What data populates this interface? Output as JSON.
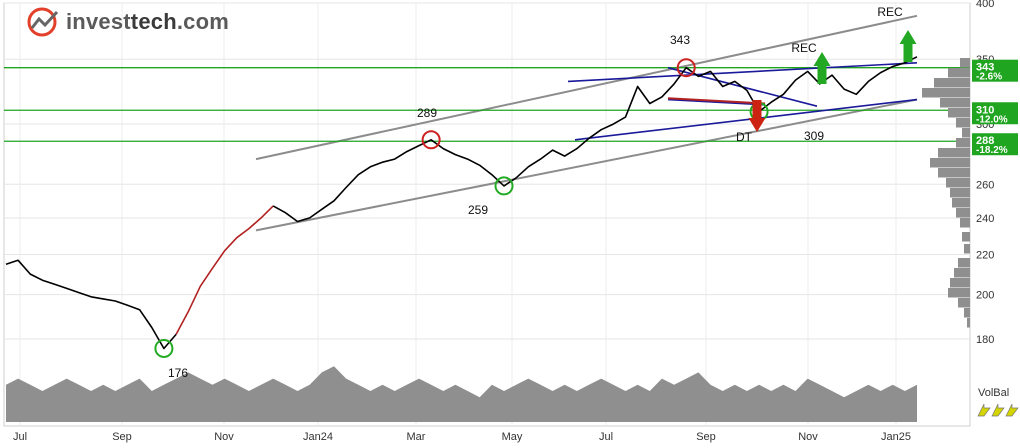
{
  "brand": {
    "name_plain": "invest",
    "name_accent": "tech",
    "name_suffix": ".com",
    "logo_color": "#e2402a"
  },
  "chart_data": {
    "type": "line",
    "price_axis": {
      "ticks": [
        180,
        200,
        220,
        240,
        260,
        300,
        350,
        400
      ],
      "tick_labels": [
        "180",
        "200",
        "220",
        "240",
        "260",
        "300",
        "350",
        "400"
      ]
    },
    "x_axis": {
      "labels": [
        "Jul",
        "Sep",
        "Nov",
        "Jan24",
        "Mar",
        "May",
        "Jul",
        "Sep",
        "Nov",
        "Jan25"
      ]
    },
    "price_series": [
      [
        0,
        215
      ],
      [
        1,
        217
      ],
      [
        2,
        210
      ],
      [
        3,
        207
      ],
      [
        4,
        205
      ],
      [
        5,
        203
      ],
      [
        6,
        201
      ],
      [
        7,
        199
      ],
      [
        8,
        198
      ],
      [
        9,
        197
      ],
      [
        10,
        195
      ],
      [
        11,
        193
      ],
      [
        12,
        185
      ],
      [
        13,
        176
      ],
      [
        14,
        182
      ],
      [
        15,
        192
      ],
      [
        16,
        204
      ],
      [
        17,
        213
      ],
      [
        18,
        222
      ],
      [
        19,
        229
      ],
      [
        20,
        234
      ],
      [
        21,
        240
      ],
      [
        22,
        247
      ],
      [
        23,
        243
      ],
      [
        24,
        238
      ],
      [
        25,
        240
      ],
      [
        26,
        245
      ],
      [
        27,
        250
      ],
      [
        28,
        258
      ],
      [
        29,
        266
      ],
      [
        30,
        271
      ],
      [
        31,
        274
      ],
      [
        32,
        276
      ],
      [
        33,
        281
      ],
      [
        34,
        285
      ],
      [
        35,
        289
      ],
      [
        36,
        283
      ],
      [
        37,
        279
      ],
      [
        38,
        276
      ],
      [
        39,
        272
      ],
      [
        40,
        266
      ],
      [
        41,
        259
      ],
      [
        42,
        264
      ],
      [
        43,
        271
      ],
      [
        44,
        276
      ],
      [
        45,
        282
      ],
      [
        46,
        278
      ],
      [
        47,
        283
      ],
      [
        48,
        290
      ],
      [
        49,
        296
      ],
      [
        50,
        300
      ],
      [
        51,
        305
      ],
      [
        52,
        328
      ],
      [
        53,
        315
      ],
      [
        54,
        320
      ],
      [
        55,
        330
      ],
      [
        56,
        343
      ],
      [
        57,
        336
      ],
      [
        58,
        340
      ],
      [
        59,
        328
      ],
      [
        60,
        332
      ],
      [
        61,
        325
      ],
      [
        62,
        309
      ],
      [
        63,
        316
      ],
      [
        64,
        322
      ],
      [
        65,
        333
      ],
      [
        66,
        340
      ],
      [
        67,
        330
      ],
      [
        68,
        337
      ],
      [
        69,
        326
      ],
      [
        70,
        322
      ],
      [
        71,
        332
      ],
      [
        72,
        339
      ],
      [
        73,
        344
      ],
      [
        74,
        347
      ],
      [
        75,
        352
      ]
    ],
    "volume_series": [
      6,
      7,
      6,
      5,
      6,
      7,
      6,
      5,
      6,
      5,
      6,
      7,
      5,
      6,
      7,
      8,
      7,
      6,
      7,
      6,
      5,
      6,
      7,
      6,
      5,
      6,
      8,
      9,
      7,
      6,
      5,
      6,
      5,
      6,
      7,
      6,
      5,
      6,
      5,
      4,
      6,
      5,
      6,
      7,
      6,
      5,
      6,
      5,
      6,
      7,
      6,
      5,
      6,
      5,
      7,
      6,
      7,
      8,
      6,
      5,
      6,
      5,
      6,
      5,
      6,
      5,
      7,
      6,
      5,
      4,
      5,
      6,
      5,
      6,
      5,
      6
    ],
    "levels": [
      {
        "value": "343",
        "pct": "-2.6%"
      },
      {
        "value": "310",
        "pct": "-12.0%"
      },
      {
        "value": "288",
        "pct": "-18.2%"
      }
    ],
    "annotations": [
      {
        "label": "176"
      },
      {
        "label": "289"
      },
      {
        "label": "259"
      },
      {
        "label": "343"
      },
      {
        "label": "309"
      },
      {
        "label": "DT"
      },
      {
        "label": "REC"
      },
      {
        "label": "REC"
      }
    ],
    "volbal_label": "VolBal",
    "colors": {
      "price": "#000000",
      "price_red": "#b22222",
      "price_green": "#22aa22",
      "support_resistance": "#1fa51f",
      "trend_channel": "#8c8c8c",
      "pattern_lines": "#1a1a9a",
      "circle_red": "#cc2222",
      "circle_green": "#22aa22",
      "volume_fill": "#8f8f8f",
      "arrow_up": "#22a822",
      "arrow_down": "#cc2211",
      "volbal_arrow": "#d4d400"
    }
  }
}
